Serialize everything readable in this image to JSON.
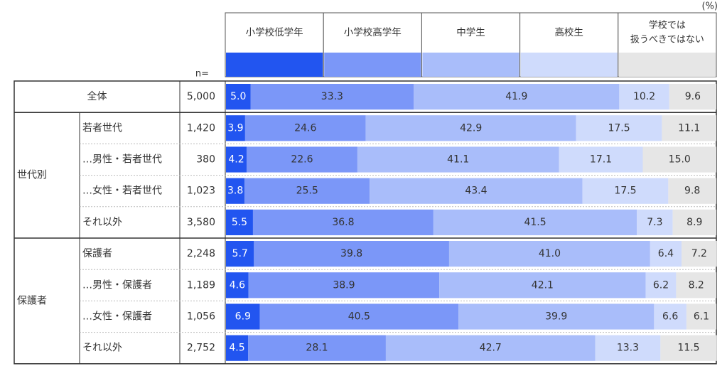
{
  "chart_data": {
    "type": "bar",
    "stacked": true,
    "orientation": "horizontal",
    "unit_label": "(%)",
    "n_label": "n=",
    "legend": [
      "小学校低学年",
      "小学校高学年",
      "中学生",
      "高校生",
      "学校では扱うべきではない"
    ],
    "legend_lines": [
      [
        "小学校低学年"
      ],
      [
        "小学校高学年"
      ],
      [
        "中学生"
      ],
      [
        "高校生"
      ],
      [
        "学校では",
        "扱うべきではない"
      ]
    ],
    "colors": [
      "#2255f0",
      "#7b97f8",
      "#a9bdfa",
      "#cfdbfc",
      "#e6e6e6"
    ],
    "groups": [
      {
        "label": "",
        "rows": [
          {
            "label": "全体",
            "n": "5,000",
            "values": [
              5.0,
              33.3,
              41.9,
              10.2,
              9.6
            ]
          }
        ]
      },
      {
        "label": "世代別",
        "rows": [
          {
            "label": "若者世代",
            "n": "1,420",
            "values": [
              3.9,
              24.6,
              42.9,
              17.5,
              11.1
            ]
          },
          {
            "label": "…男性・若者世代",
            "n": "380",
            "values": [
              4.2,
              22.6,
              41.1,
              17.1,
              15.0
            ]
          },
          {
            "label": "…女性・若者世代",
            "n": "1,023",
            "values": [
              3.8,
              25.5,
              43.4,
              17.5,
              9.8
            ]
          },
          {
            "label": "それ以外",
            "n": "3,580",
            "values": [
              5.5,
              36.8,
              41.5,
              7.3,
              8.9
            ]
          }
        ]
      },
      {
        "label": "保護者",
        "rows": [
          {
            "label": "保護者",
            "n": "2,248",
            "values": [
              5.7,
              39.8,
              41.0,
              6.4,
              7.2
            ]
          },
          {
            "label": "…男性・保護者",
            "n": "1,189",
            "values": [
              4.6,
              38.9,
              42.1,
              6.2,
              8.2
            ]
          },
          {
            "label": "…女性・保護者",
            "n": "1,056",
            "values": [
              6.9,
              40.5,
              39.9,
              6.6,
              6.1
            ]
          },
          {
            "label": "それ以外",
            "n": "2,752",
            "values": [
              4.5,
              28.1,
              42.7,
              13.3,
              11.5
            ]
          }
        ]
      }
    ]
  }
}
